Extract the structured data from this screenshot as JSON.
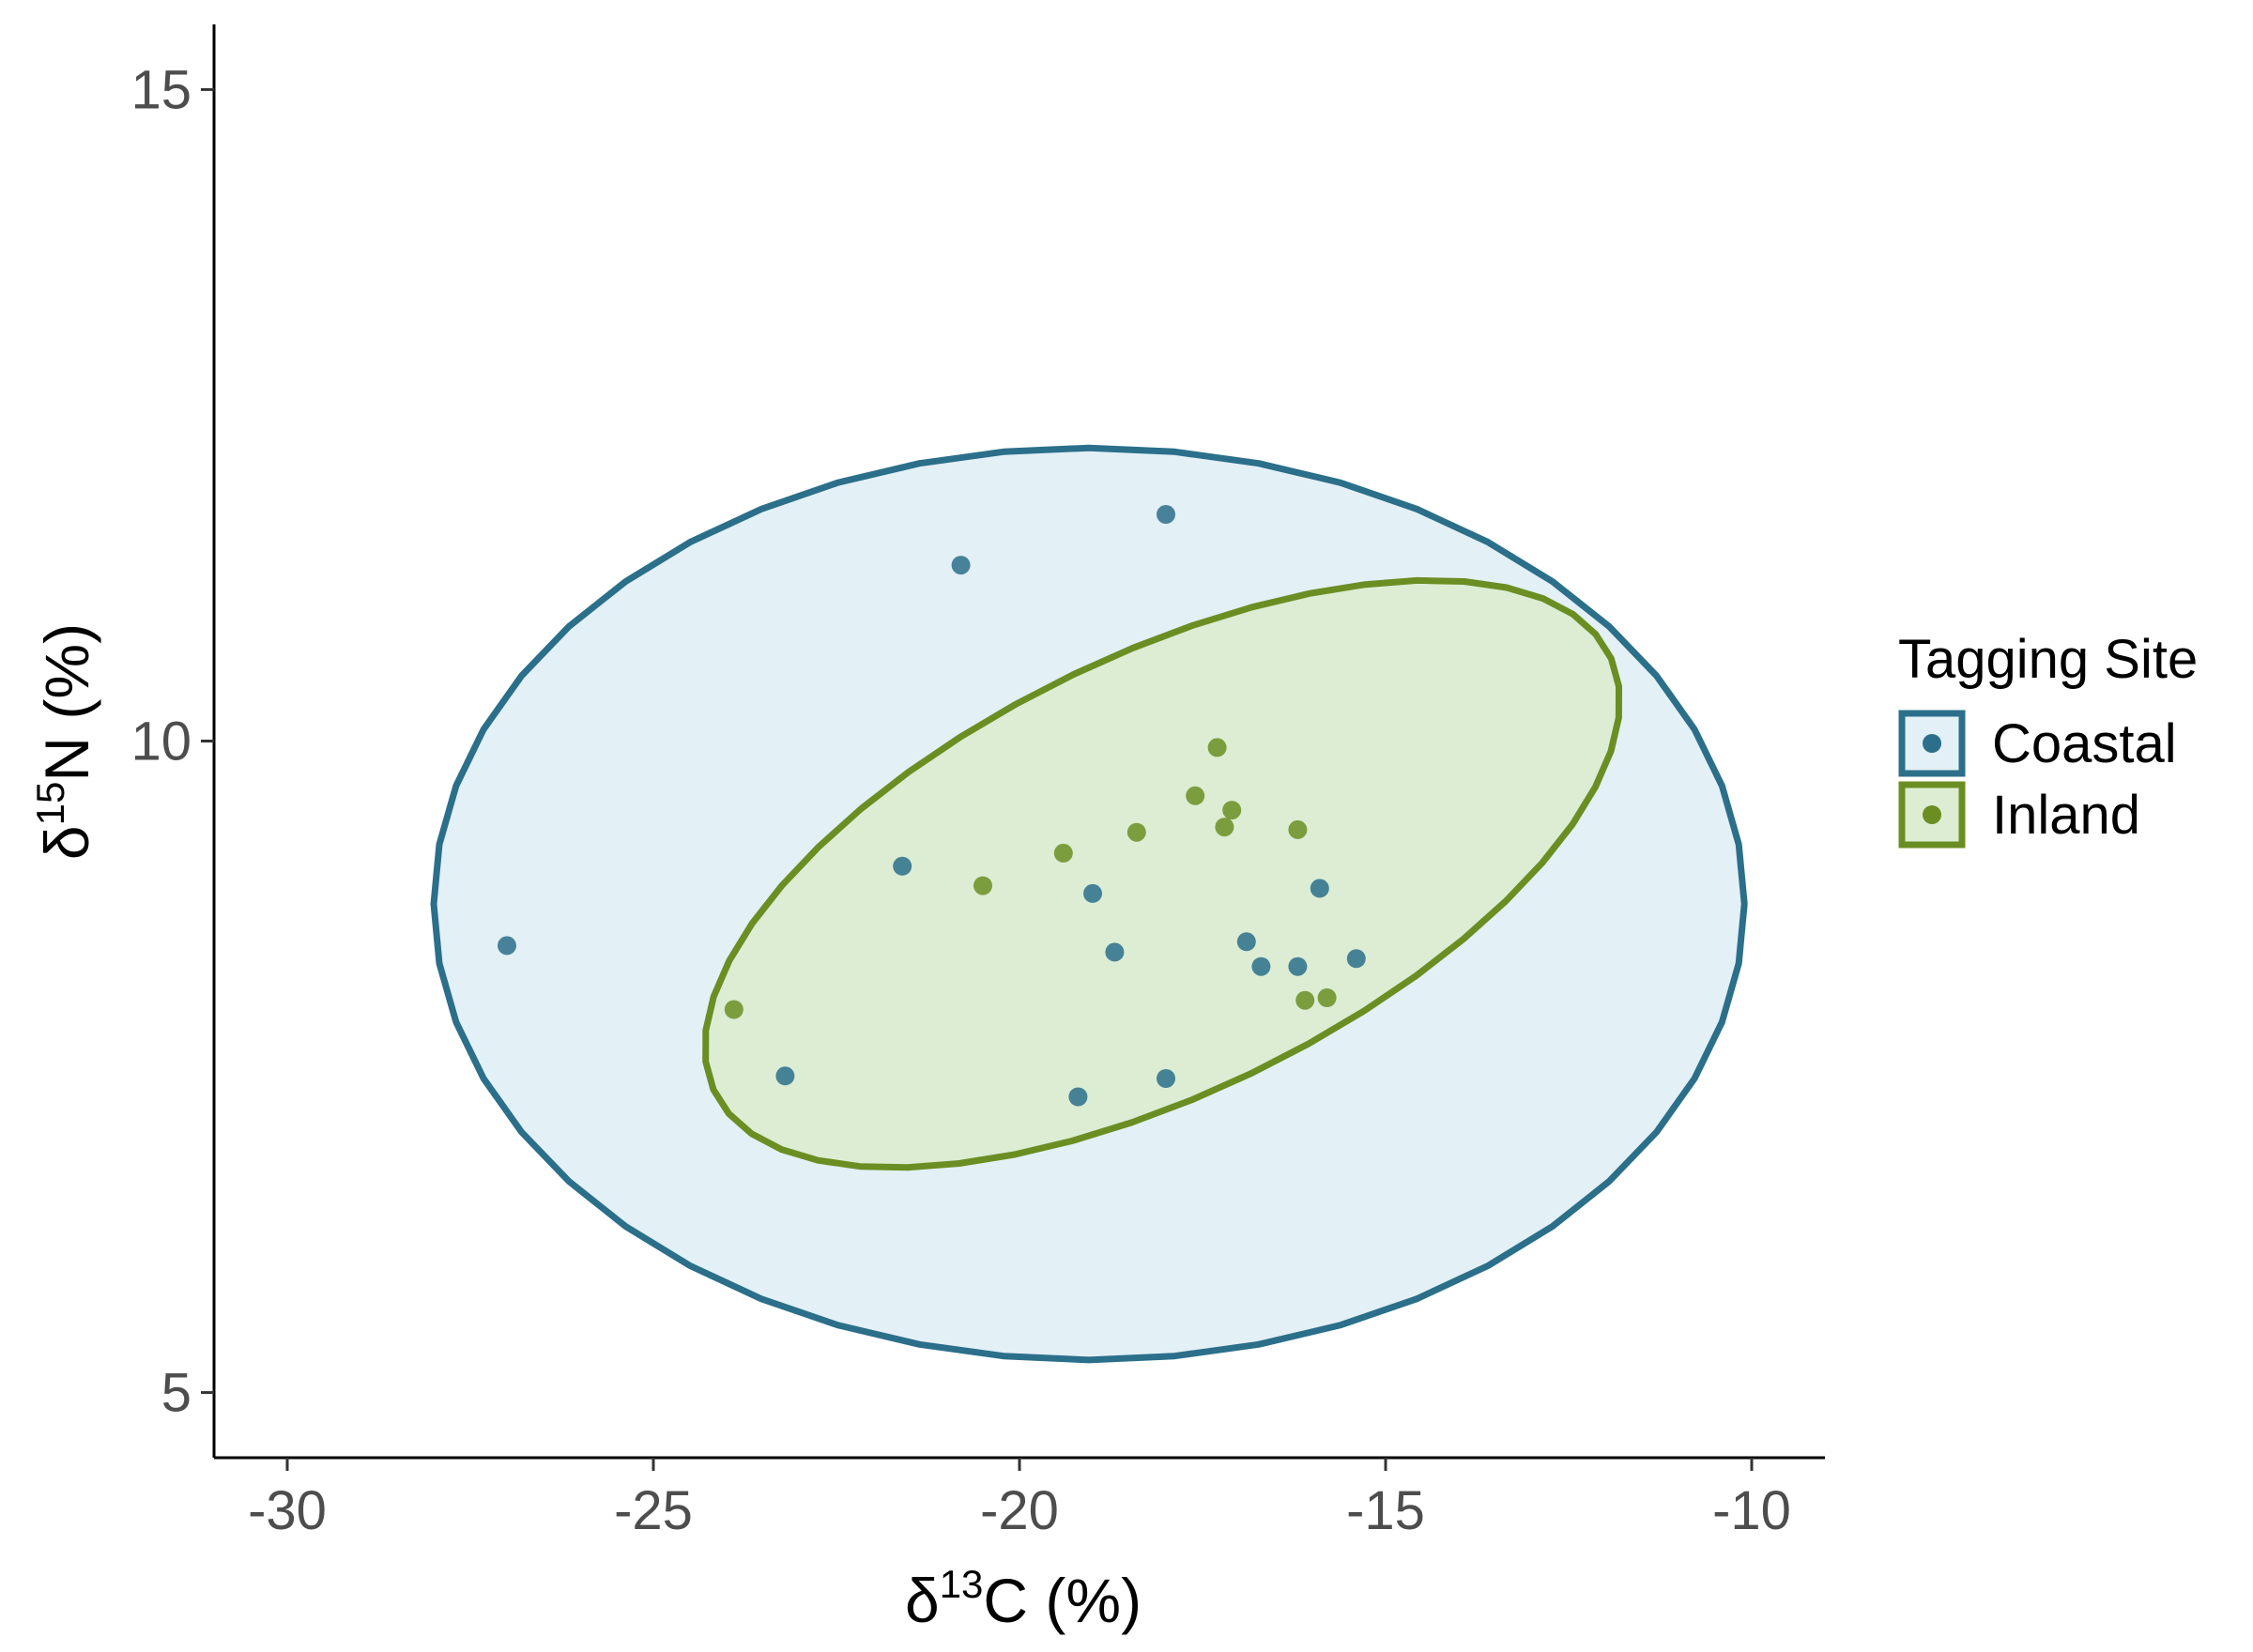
{
  "chart_data": {
    "type": "scatter",
    "title": "",
    "xlabel": {
      "prefix": "δ",
      "sup": "13",
      "element": "C",
      "unit": " (%)"
    },
    "ylabel": {
      "prefix": "δ",
      "sup": "15",
      "element": "N",
      "unit": " (%)"
    },
    "xlim": [
      -31,
      -9
    ],
    "ylim": [
      4.5,
      15.5
    ],
    "xticks": [
      -30,
      -25,
      -20,
      -15,
      -10
    ],
    "yticks": [
      5,
      10,
      15
    ],
    "grid": false,
    "legend": {
      "title": "Tagging Site",
      "position": "right"
    },
    "series": [
      {
        "name": "Coastal",
        "color": "#2b6f8a",
        "fill": "#e3f0f6",
        "points": [
          {
            "x": -27.0,
            "y": 8.43
          },
          {
            "x": -20.8,
            "y": 11.35
          },
          {
            "x": -18.0,
            "y": 11.74
          },
          {
            "x": -21.6,
            "y": 9.04
          },
          {
            "x": -19.0,
            "y": 8.83
          },
          {
            "x": -18.7,
            "y": 8.38
          },
          {
            "x": -23.2,
            "y": 7.43
          },
          {
            "x": -19.2,
            "y": 7.27
          },
          {
            "x": -18.0,
            "y": 7.41
          },
          {
            "x": -16.9,
            "y": 8.46
          },
          {
            "x": -16.7,
            "y": 8.27
          },
          {
            "x": -16.2,
            "y": 8.27
          },
          {
            "x": -15.9,
            "y": 8.87
          },
          {
            "x": -15.4,
            "y": 8.33
          }
        ],
        "ellipse": {
          "cx": -19.05,
          "cy": 8.75,
          "rx": 8.95,
          "ry": 3.5,
          "angle": 0
        }
      },
      {
        "name": "Inland",
        "color": "#6b8e23",
        "fill": "#dcedd4",
        "points": [
          {
            "x": -17.3,
            "y": 9.95
          },
          {
            "x": -17.6,
            "y": 9.58
          },
          {
            "x": -17.1,
            "y": 9.47
          },
          {
            "x": -17.2,
            "y": 9.34
          },
          {
            "x": -18.4,
            "y": 9.3
          },
          {
            "x": -16.2,
            "y": 9.32
          },
          {
            "x": -19.4,
            "y": 9.14
          },
          {
            "x": -20.5,
            "y": 8.89
          },
          {
            "x": -23.9,
            "y": 7.94
          },
          {
            "x": -16.1,
            "y": 8.01
          },
          {
            "x": -15.8,
            "y": 8.03
          }
        ],
        "ellipse": {
          "cx": -18.05,
          "cy": 8.98,
          "rx": 6.4,
          "ry": 1.78,
          "angle": 13
        }
      }
    ]
  }
}
